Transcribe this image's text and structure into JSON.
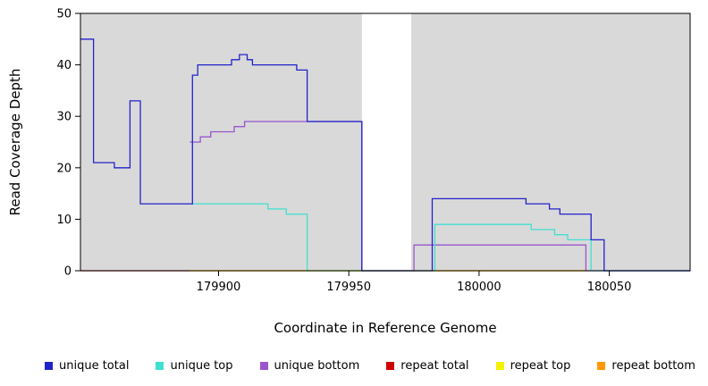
{
  "chart_data": {
    "type": "line",
    "step": true,
    "title": "",
    "xlabel": "Coordinate in Reference Genome",
    "ylabel": "Read Coverage Depth",
    "xlim": [
      179847,
      180081
    ],
    "ylim": [
      0,
      50
    ],
    "x_ticks": [
      179900,
      179950,
      180000,
      180050
    ],
    "y_ticks": [
      0,
      10,
      20,
      30,
      40,
      50
    ],
    "grid": false,
    "panel_background": "#d9d9d9",
    "background_regions": [
      {
        "x0": 179847,
        "x1": 179955,
        "color": "#d9d9d9"
      },
      {
        "x0": 179974,
        "x1": 180081,
        "color": "#d9d9d9"
      }
    ],
    "legend_position": "bottom",
    "legend": [
      {
        "label": "unique total",
        "color": "#2222cc"
      },
      {
        "label": "unique top",
        "color": "#40e0d0"
      },
      {
        "label": "unique bottom",
        "color": "#9955cc"
      },
      {
        "label": "repeat total",
        "color": "#cc0000"
      },
      {
        "label": "repeat top",
        "color": "#f2f200"
      },
      {
        "label": "repeat bottom",
        "color": "#ff9900"
      }
    ],
    "series": [
      {
        "name": "repeat top",
        "color": "#f2f200",
        "xend": 180041,
        "points": [
          [
            179889,
            0
          ]
        ]
      },
      {
        "name": "repeat bottom",
        "color": "#ff9900",
        "xend": 180041,
        "points": [
          [
            179889,
            0
          ]
        ]
      },
      {
        "name": "repeat total",
        "color": "#cc0000",
        "xend": 179889,
        "points": [
          [
            179847,
            0
          ]
        ]
      },
      {
        "name": "unique bottom",
        "color": "#9955cc",
        "xend": 180081,
        "points": [
          [
            179889,
            25
          ],
          [
            179893,
            26
          ],
          [
            179897,
            27
          ],
          [
            179906,
            28
          ],
          [
            179910,
            29
          ],
          [
            179955,
            0
          ],
          [
            179975,
            5
          ],
          [
            180041,
            0
          ]
        ]
      },
      {
        "name": "unique top",
        "color": "#40e0d0",
        "xend": 180081,
        "points": [
          [
            179889,
            13
          ],
          [
            179919,
            12
          ],
          [
            179926,
            11
          ],
          [
            179934,
            0
          ],
          [
            179983,
            9
          ],
          [
            180020,
            8
          ],
          [
            180029,
            7
          ],
          [
            180034,
            6
          ],
          [
            180043,
            0
          ]
        ]
      },
      {
        "name": "unique total",
        "color": "#2222cc",
        "xend": 180081,
        "points": [
          [
            179847,
            45
          ],
          [
            179852,
            21
          ],
          [
            179860,
            20
          ],
          [
            179866,
            33
          ],
          [
            179870,
            13
          ],
          [
            179890,
            38
          ],
          [
            179892,
            40
          ],
          [
            179905,
            41
          ],
          [
            179908,
            42
          ],
          [
            179911,
            41
          ],
          [
            179913,
            40
          ],
          [
            179930,
            39
          ],
          [
            179934,
            29
          ],
          [
            179955,
            0
          ],
          [
            179982,
            14
          ],
          [
            180018,
            13
          ],
          [
            180027,
            12
          ],
          [
            180031,
            11
          ],
          [
            180043,
            6
          ],
          [
            180048,
            0
          ]
        ]
      }
    ]
  }
}
